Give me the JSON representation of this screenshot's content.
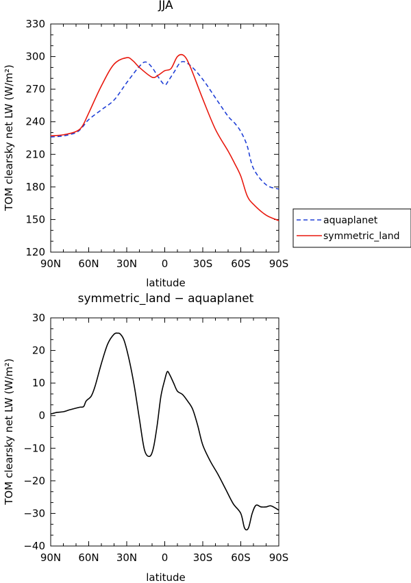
{
  "chart_data": [
    {
      "type": "line",
      "title": "JJA",
      "xlabel": "latitude",
      "ylabel": "TOM clearsky net LW (W/m²)",
      "ylim": [
        120,
        330
      ],
      "yticks": [
        120,
        150,
        180,
        210,
        240,
        270,
        300,
        330
      ],
      "xlim": [
        -90,
        90
      ],
      "xticks": [
        -90,
        -60,
        -30,
        0,
        30,
        60,
        90
      ],
      "xtick_labels": [
        "90N",
        "60N",
        "30N",
        "0",
        "30S",
        "60S",
        "90S"
      ],
      "legend": "right",
      "series": [
        {
          "name": "aquaplanet",
          "color": "#1f3fd6",
          "dash": "dashed",
          "x": [
            -90,
            -80,
            -70,
            -65,
            -60,
            -50,
            -40,
            -30,
            -20,
            -15,
            -10,
            -5,
            0,
            3,
            7,
            13,
            20,
            30,
            40,
            50,
            55,
            60,
            65,
            70,
            80,
            90
          ],
          "y": [
            226,
            227,
            230,
            235,
            242,
            251,
            260,
            276,
            291,
            295,
            290,
            281,
            274,
            278,
            285,
            295,
            292,
            279,
            262,
            245,
            239,
            231,
            218,
            197,
            182,
            178
          ]
        },
        {
          "name": "symmetric_land",
          "color": "#e8170c",
          "dash": "solid",
          "x": [
            -90,
            -80,
            -70,
            -65,
            -60,
            -50,
            -40,
            -30,
            -25,
            -20,
            -10,
            -5,
            0,
            5,
            10,
            15,
            20,
            30,
            40,
            50,
            55,
            60,
            65,
            70,
            80,
            90
          ],
          "y": [
            227,
            228,
            231,
            236,
            248,
            273,
            293,
            299,
            296,
            290,
            281,
            283,
            287,
            289,
            300,
            301,
            291,
            261,
            233,
            213,
            202,
            190,
            172,
            164,
            154,
            149
          ]
        }
      ]
    },
    {
      "type": "line",
      "title": "symmetric_land − aquaplanet",
      "xlabel": "latitude",
      "ylabel": "TOM clearsky net LW (W/m²)",
      "ylim": [
        -40,
        30
      ],
      "yticks": [
        -40,
        -30,
        -20,
        -10,
        0,
        10,
        20,
        30
      ],
      "xlim": [
        -90,
        90
      ],
      "xticks": [
        -90,
        -60,
        -30,
        0,
        30,
        60,
        90
      ],
      "xtick_labels": [
        "90N",
        "60N",
        "30N",
        "0",
        "30S",
        "60S",
        "90S"
      ],
      "series": [
        {
          "name": "",
          "color": "#000000",
          "dash": "solid",
          "x": [
            -90,
            -85,
            -80,
            -75,
            -70,
            -67,
            -64,
            -62,
            -58,
            -55,
            -50,
            -45,
            -40,
            -37,
            -35,
            -32,
            -28,
            -24,
            -20,
            -16,
            -12,
            -9,
            -6,
            -3,
            0,
            2,
            4,
            7,
            10,
            14,
            18,
            22,
            26,
            30,
            36,
            42,
            48,
            54,
            60,
            63,
            66,
            69,
            72,
            76,
            80,
            84,
            90
          ],
          "y": [
            0.5,
            1,
            1.2,
            1.8,
            2.3,
            2.6,
            2.8,
            4.5,
            6,
            9,
            16,
            22,
            25,
            25.3,
            25,
            23,
            17,
            9,
            -1,
            -10.5,
            -12.5,
            -10,
            -3,
            6,
            11,
            13.5,
            12.5,
            10,
            7.5,
            6.5,
            4.5,
            2,
            -3,
            -9,
            -14,
            -18,
            -22.5,
            -27,
            -30,
            -34.5,
            -34.5,
            -30,
            -27.5,
            -28,
            -28,
            -27.7,
            -29
          ]
        }
      ]
    }
  ]
}
